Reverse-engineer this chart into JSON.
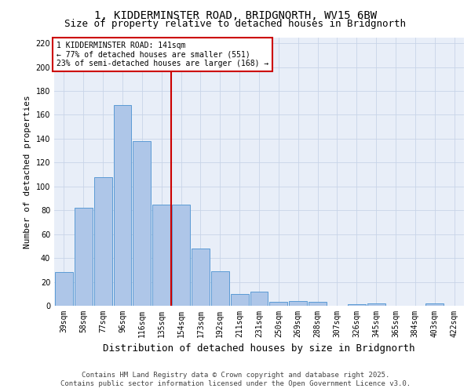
{
  "title_line1": "1, KIDDERMINSTER ROAD, BRIDGNORTH, WV15 6BW",
  "title_line2": "Size of property relative to detached houses in Bridgnorth",
  "xlabel": "Distribution of detached houses by size in Bridgnorth",
  "ylabel": "Number of detached properties",
  "categories": [
    "39sqm",
    "58sqm",
    "77sqm",
    "96sqm",
    "116sqm",
    "135sqm",
    "154sqm",
    "173sqm",
    "192sqm",
    "211sqm",
    "231sqm",
    "250sqm",
    "269sqm",
    "288sqm",
    "307sqm",
    "326sqm",
    "345sqm",
    "365sqm",
    "384sqm",
    "403sqm",
    "422sqm"
  ],
  "values": [
    28,
    82,
    108,
    168,
    138,
    85,
    85,
    48,
    29,
    10,
    12,
    3,
    4,
    3,
    0,
    1,
    2,
    0,
    0,
    2,
    0
  ],
  "bar_color": "#aec6e8",
  "bar_edge_color": "#5b9bd5",
  "vline_x": 5.5,
  "vline_color": "#cc0000",
  "annotation_box_text": "1 KIDDERMINSTER ROAD: 141sqm\n← 77% of detached houses are smaller (551)\n23% of semi-detached houses are larger (168) →",
  "annotation_box_color": "#cc0000",
  "ylim": [
    0,
    225
  ],
  "yticks": [
    0,
    20,
    40,
    60,
    80,
    100,
    120,
    140,
    160,
    180,
    200,
    220
  ],
  "grid_color": "#c8d4e8",
  "background_color": "#e8eef8",
  "footer_line1": "Contains HM Land Registry data © Crown copyright and database right 2025.",
  "footer_line2": "Contains public sector information licensed under the Open Government Licence v3.0.",
  "title_fontsize": 10,
  "subtitle_fontsize": 9,
  "ylabel_fontsize": 8,
  "xlabel_fontsize": 9,
  "tick_fontsize": 7,
  "footer_fontsize": 6.5,
  "ann_fontsize": 7
}
